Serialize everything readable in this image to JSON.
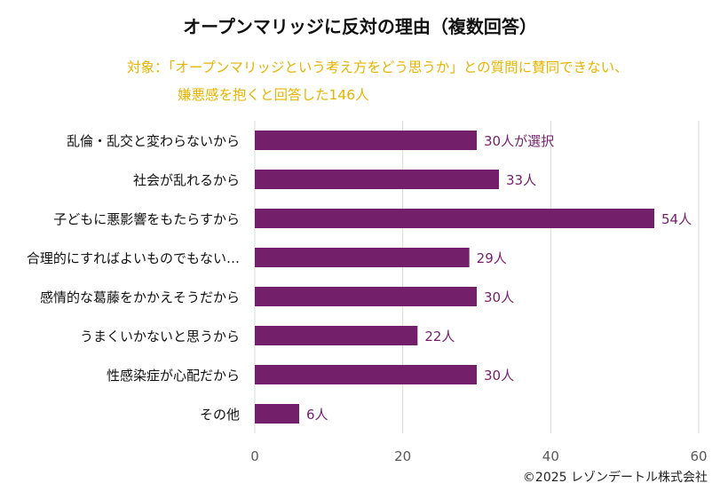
{
  "page": {
    "title": "オープンマリッジに反対の理由（複数回答）",
    "subtitle_line1": "対象：「オープンマリッジという考え方をどう思うか」との質問に賛同できない、",
    "subtitle_line2": "嫌悪感を抱くと回答した146人",
    "credit": "©2025 レゾンデートル株式会社"
  },
  "colors": {
    "bar": "#741F6A",
    "subtitle": "#E6B400",
    "grid": "#D9D9D9"
  },
  "chart_data": {
    "type": "bar",
    "orientation": "horizontal",
    "title": "オープンマリッジに反対の理由（複数回答）",
    "categories": [
      "乱倫・乱交と変わらないから",
      "社会が乱れるから",
      "子どもに悪影響をもたらすから",
      "合理的にすればよいものでもない…",
      "感情的な葛藤をかかえそうだから",
      "うまくいかないと思うから",
      "性感染症が心配だから",
      "その他"
    ],
    "values": [
      30,
      33,
      54,
      29,
      30,
      22,
      30,
      6
    ],
    "value_labels": [
      "30人が選択",
      "33人",
      "54人",
      "29人",
      "30人",
      "22人",
      "30人",
      "6人"
    ],
    "xlim": [
      0,
      60
    ],
    "xticks": [
      0,
      20,
      40,
      60
    ],
    "xlabel": "",
    "ylabel": "",
    "grid": "vertical"
  }
}
